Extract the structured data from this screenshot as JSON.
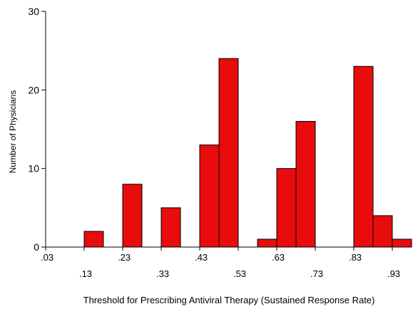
{
  "chart_data": {
    "type": "bar",
    "title": "",
    "xlabel": "Threshold for Prescribing Antiviral Therapy (Sustained Response Rate)",
    "ylabel": "Number of Physicians",
    "xlim": [
      0.03,
      0.98
    ],
    "ylim": [
      0,
      30
    ],
    "grid": false,
    "bar_color": "#E80C0C",
    "bar_edge_color": "#000000",
    "bin_width": 0.05,
    "x_ticks": [
      {
        "value": 0.03,
        "label": ".03"
      },
      {
        "value": 0.13,
        "label": ".13"
      },
      {
        "value": 0.23,
        "label": ".23"
      },
      {
        "value": 0.33,
        "label": ".33"
      },
      {
        "value": 0.43,
        "label": ".43"
      },
      {
        "value": 0.53,
        "label": ".53"
      },
      {
        "value": 0.63,
        "label": ".63"
      },
      {
        "value": 0.73,
        "label": ".73"
      },
      {
        "value": 0.83,
        "label": ".83"
      },
      {
        "value": 0.93,
        "label": ".93"
      }
    ],
    "y_ticks": [
      {
        "value": 0,
        "label": "0"
      },
      {
        "value": 10,
        "label": "10"
      },
      {
        "value": 20,
        "label": "20"
      },
      {
        "value": 30,
        "label": "30"
      }
    ],
    "bins": [
      {
        "x0": 0.13,
        "x1": 0.18,
        "count": 2
      },
      {
        "x0": 0.23,
        "x1": 0.28,
        "count": 8
      },
      {
        "x0": 0.33,
        "x1": 0.38,
        "count": 5
      },
      {
        "x0": 0.43,
        "x1": 0.48,
        "count": 13
      },
      {
        "x0": 0.48,
        "x1": 0.53,
        "count": 24
      },
      {
        "x0": 0.58,
        "x1": 0.63,
        "count": 1
      },
      {
        "x0": 0.63,
        "x1": 0.68,
        "count": 10
      },
      {
        "x0": 0.68,
        "x1": 0.73,
        "count": 16
      },
      {
        "x0": 0.83,
        "x1": 0.88,
        "count": 23
      },
      {
        "x0": 0.88,
        "x1": 0.93,
        "count": 4
      },
      {
        "x0": 0.93,
        "x1": 0.98,
        "count": 1
      }
    ]
  }
}
